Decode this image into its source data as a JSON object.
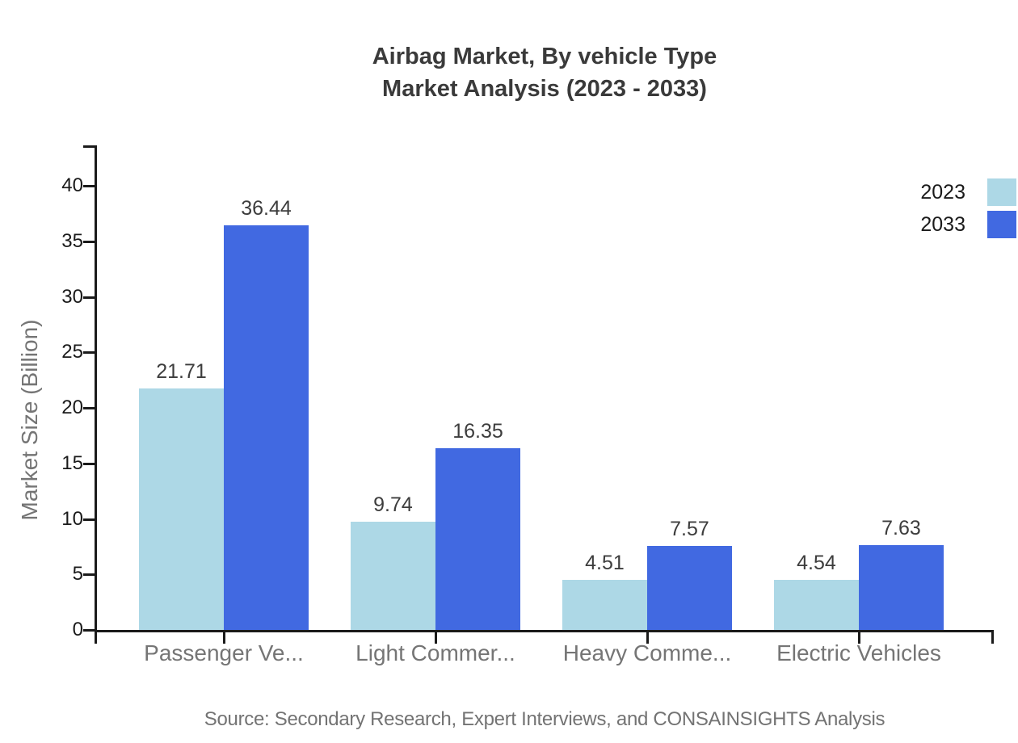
{
  "chart_data": {
    "type": "bar",
    "title_line1": "Airbag Market, By vehicle Type",
    "title_line2": "Market Analysis (2023 - 2033)",
    "categories": [
      "Passenger Ve...",
      "Light Commer...",
      "Heavy Comme...",
      "Electric Vehicles"
    ],
    "series": [
      {
        "name": "2023",
        "color": "#ADD8E6",
        "values": [
          21.71,
          9.74,
          4.51,
          4.54
        ]
      },
      {
        "name": "2033",
        "color": "#4169E1",
        "values": [
          36.44,
          16.35,
          7.57,
          7.63
        ]
      }
    ],
    "xlabel": "",
    "ylabel": "Market Size (Billion)",
    "ylim": [
      0,
      40
    ],
    "yticks": [
      0,
      5,
      10,
      15,
      20,
      25,
      30,
      35,
      40
    ],
    "grid": false,
    "legend_position": "top-right",
    "value_labels": true
  },
  "source_note": "Source: Secondary Research, Expert Interviews, and CONSAINSIGHTS Analysis",
  "colors": {
    "series_2023": "#ADD8E6",
    "series_2033": "#4169E1",
    "title_text": "#3A3A3A",
    "axis": "#1A1A1A",
    "muted_text": "#757575",
    "value_label_text": "#3D3D3D",
    "background": "#FFFFFF"
  }
}
